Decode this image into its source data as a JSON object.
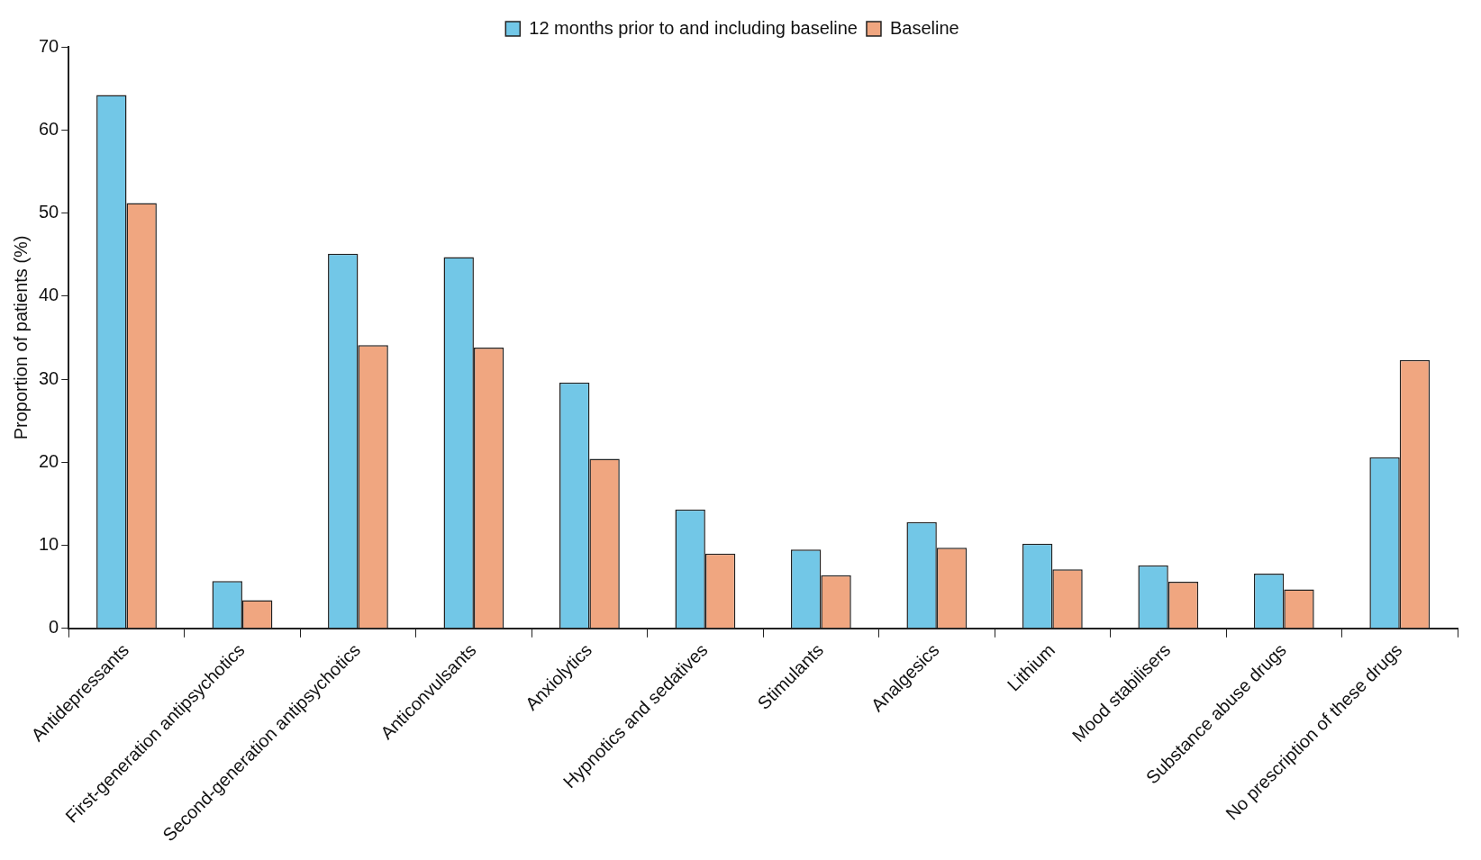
{
  "chart_data": {
    "type": "bar",
    "ylabel": "Proportion of patients (%)",
    "categories": [
      "Antidepressants",
      "First-generation antipsychotics",
      "Second-generation antipsychotics",
      "Anticonvulsants",
      "Anxiolytics",
      "Hypnotics and sedatives",
      "Stimulants",
      "Analgesics",
      "Lithium",
      "Mood stabilisers",
      "Substance abuse drugs",
      "No prescription of these drugs"
    ],
    "series": [
      {
        "name": "12 months prior to and including baseline",
        "color": "#72c7e7",
        "values": [
          64.2,
          5.7,
          45.1,
          44.7,
          29.6,
          14.3,
          9.5,
          12.8,
          10.2,
          7.6,
          6.6,
          20.6
        ]
      },
      {
        "name": "Baseline",
        "color": "#f0a680",
        "values": [
          51.2,
          3.4,
          34.1,
          33.8,
          20.4,
          9.0,
          6.4,
          9.7,
          7.1,
          5.6,
          4.7,
          32.3
        ]
      }
    ],
    "ylim": [
      0,
      70
    ],
    "yticks": [
      0,
      10,
      20,
      30,
      40,
      50,
      60,
      70
    ],
    "grid": false,
    "legend": "top"
  }
}
